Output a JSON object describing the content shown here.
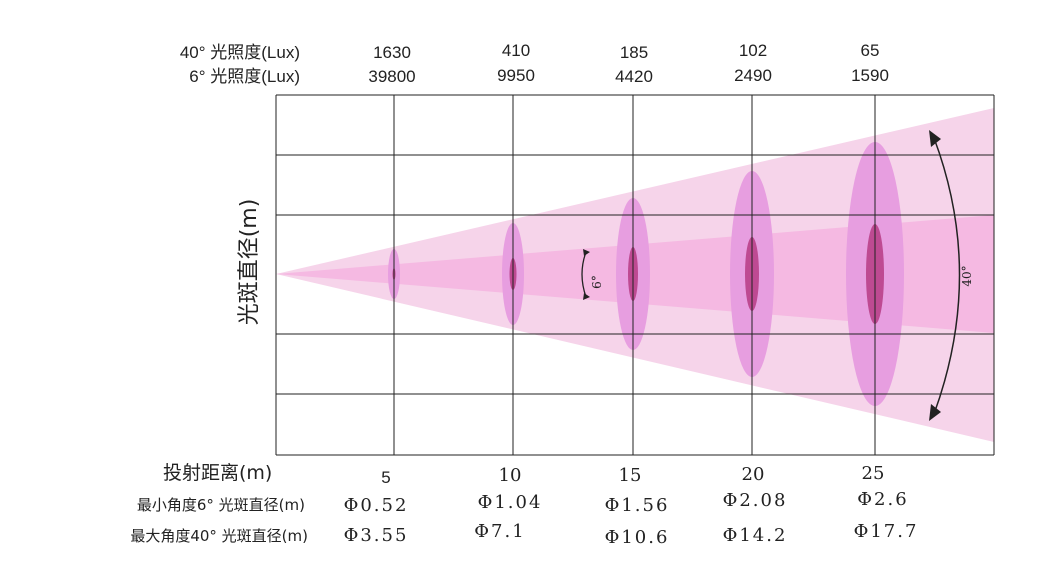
{
  "header": {
    "row40_label": "40° 光照度(Lux)",
    "row6_label": "6° 光照度(Lux)"
  },
  "y_axis_label": "光斑直径(m)",
  "distance_label": "投射距离(m)",
  "min_label": "最小角度6° 光斑直径(m)",
  "max_label": "最大角度40° 光斑直径(m)",
  "angle_small": "6°",
  "angle_large": "40°",
  "columns": [
    {
      "lux40": "1630",
      "lux6": "39800",
      "distance": "5",
      "dia6": "Φ0.52",
      "dia40": "Φ3.55"
    },
    {
      "lux40": "410",
      "lux6": "9950",
      "distance": "10",
      "dia6": "Φ1.04",
      "dia40": "Φ7.1"
    },
    {
      "lux40": "185",
      "lux6": "4420",
      "distance": "15",
      "dia6": "Φ1.56",
      "dia40": "Φ10.6"
    },
    {
      "lux40": "102",
      "lux6": "2490",
      "distance": "20",
      "dia6": "Φ2.08",
      "dia40": "Φ14.2"
    },
    {
      "lux40": "65",
      "lux6": "1590",
      "distance": "25",
      "dia6": "Φ2.6",
      "dia40": "Φ17.7"
    }
  ],
  "colors": {
    "outer_beam": "#f6d4ea",
    "inner_beam": "#f4b4e0",
    "outer_spot": "#e79ee0",
    "inner_spot": "#be4a92",
    "grid": "#222222"
  }
}
